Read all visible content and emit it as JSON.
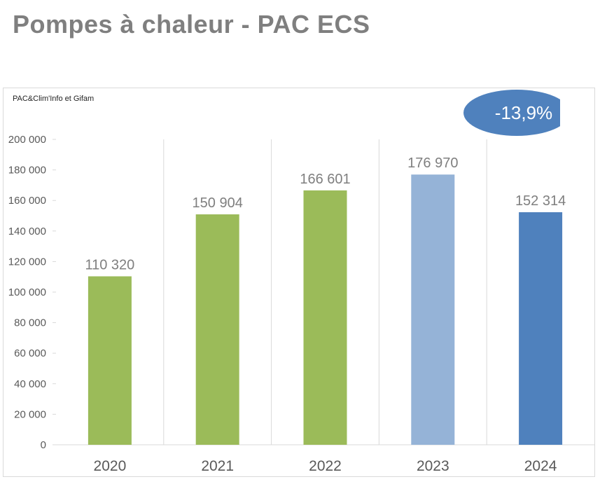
{
  "page_title": "Pompes à chaleur - PAC ECS",
  "source": "PAC&Clim'Info et Gifam",
  "badge": {
    "text": "-13,9%",
    "color": "#4f81bd"
  },
  "chart_data": {
    "type": "bar",
    "categories": [
      "2020",
      "2021",
      "2022",
      "2023",
      "2024"
    ],
    "values": [
      110320,
      150904,
      166601,
      176970,
      152314
    ],
    "data_labels": [
      "110 320",
      "150 904",
      "166 601",
      "176 970",
      "152 314"
    ],
    "colors": [
      "#9bbb59",
      "#9bbb59",
      "#9bbb59",
      "#95b3d7",
      "#4f81bd"
    ],
    "ylim": [
      0,
      200000
    ],
    "yticks": [
      0,
      20000,
      40000,
      60000,
      80000,
      100000,
      120000,
      140000,
      160000,
      180000,
      200000
    ],
    "ytick_labels": [
      "0",
      "20 000",
      "40 000",
      "60 000",
      "80 000",
      "100 000",
      "120 000",
      "140 000",
      "160 000",
      "180 000",
      "200 000"
    ],
    "grid": "vertical",
    "legend": "none",
    "title": "",
    "xlabel": "",
    "ylabel": ""
  }
}
